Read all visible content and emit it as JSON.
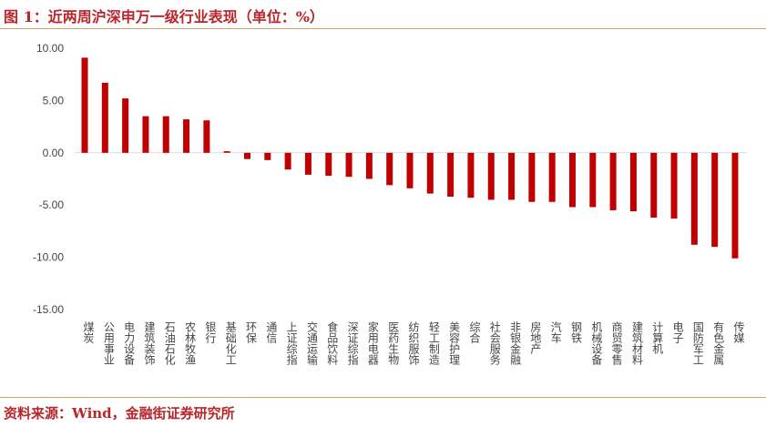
{
  "title": "图 1：近两周沪深申万一级行业表现（单位：%）",
  "source": "资料来源：Wind，金融街证券研究所",
  "chart_data": {
    "type": "bar",
    "title": "图 1：近两周沪深申万一级行业表现（单位：%）",
    "categories": [
      "煤炭",
      "公用事业",
      "电力设备",
      "建筑装饰",
      "石油石化",
      "农林牧渔",
      "银行",
      "基础化工",
      "环保",
      "通信",
      "上证综指",
      "交通运输",
      "食品饮料",
      "深证综指",
      "家用电器",
      "医药生物",
      "纺织服饰",
      "轻工制造",
      "美容护理",
      "综合",
      "社会服务",
      "非银金融",
      "房地产",
      "汽车",
      "钢铁",
      "机械设备",
      "商贸零售",
      "建筑材料",
      "计算机",
      "电子",
      "国防军工",
      "有色金属",
      "传媒"
    ],
    "values": [
      9.1,
      6.7,
      5.2,
      3.5,
      3.5,
      3.2,
      3.1,
      0.15,
      -0.6,
      -0.7,
      -1.6,
      -2.1,
      -2.2,
      -2.3,
      -2.5,
      -3.1,
      -3.4,
      -3.9,
      -4.2,
      -4.3,
      -4.5,
      -4.5,
      -4.7,
      -4.7,
      -5.2,
      -5.2,
      -5.5,
      -5.6,
      -6.2,
      -6.3,
      -8.8,
      -9.0,
      -10.1
    ],
    "ylim": [
      -15,
      10
    ],
    "yticks": [
      "10.00",
      "5.00",
      "0.00",
      "-5.00",
      "-10.00",
      "-15.00"
    ],
    "grid": false,
    "color": "#c00000"
  }
}
